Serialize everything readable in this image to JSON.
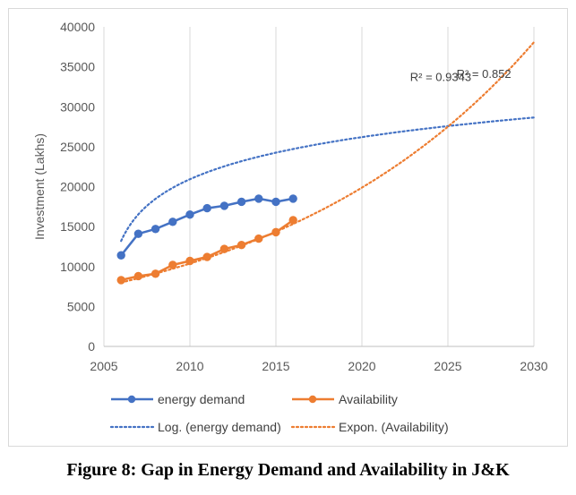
{
  "caption": "Figure 8: Gap in Energy Demand and Availability in J&K",
  "chart_data": {
    "type": "line",
    "title": "",
    "xlabel": "",
    "ylabel": "Investment (Lakhs)",
    "xlim": [
      2005,
      2030
    ],
    "ylim": [
      0,
      40000
    ],
    "x_ticks": [
      2005,
      2010,
      2015,
      2020,
      2025,
      2030
    ],
    "y_ticks": [
      0,
      5000,
      10000,
      15000,
      20000,
      25000,
      30000,
      35000,
      40000
    ],
    "grid": "vertical-major",
    "legend_position": "bottom",
    "series": [
      {
        "name": "energy demand",
        "color": "#4472c4",
        "style": "solid-markers",
        "x": [
          2006,
          2007,
          2008,
          2009,
          2010,
          2011,
          2012,
          2013,
          2014,
          2015,
          2016
        ],
        "y": [
          11400,
          14100,
          14700,
          15600,
          16500,
          17300,
          17600,
          18100,
          18500,
          18100,
          18500
        ]
      },
      {
        "name": "Availability",
        "color": "#ed7d31",
        "style": "solid-markers",
        "x": [
          2006,
          2007,
          2008,
          2009,
          2010,
          2011,
          2012,
          2013,
          2014,
          2015,
          2016
        ],
        "y": [
          8300,
          8800,
          9100,
          10200,
          10700,
          11200,
          12200,
          12700,
          13500,
          14300,
          15800
        ]
      }
    ],
    "trendlines": [
      {
        "name": "Log. (energy demand)",
        "kind": "logarithmic",
        "color": "#4472c4",
        "a": 13200,
        "b": 4800,
        "x0": 2005,
        "range": [
          2006,
          2030
        ]
      },
      {
        "name": "Expon. (Availability)",
        "kind": "exponential",
        "color": "#ed7d31",
        "a": 8000,
        "r": 0.065,
        "x0": 2006,
        "range": [
          2006,
          2030
        ]
      }
    ],
    "annotations": [
      {
        "text": "R² = 0.9343",
        "x": 2022.8,
        "y": 33200
      },
      {
        "text": "R² = 0.852",
        "x": 2025.5,
        "y": 33600
      }
    ]
  }
}
